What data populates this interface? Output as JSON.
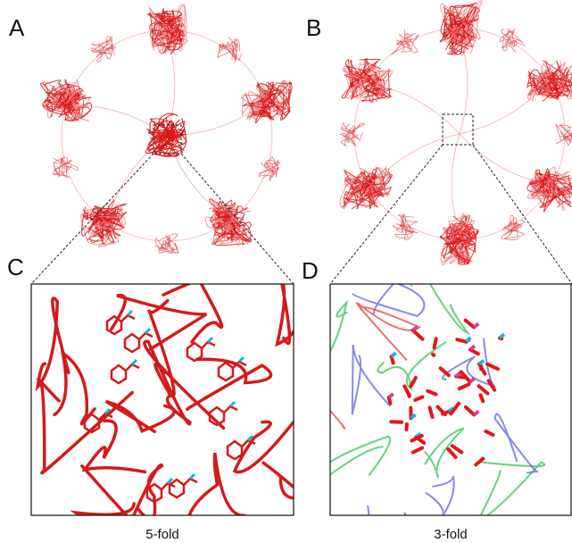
{
  "panels": [
    {
      "label": "A"
    },
    {
      "label": "B"
    },
    {
      "label": "C",
      "caption": "5-fold"
    },
    {
      "label": "D",
      "caption": "3-fold"
    }
  ]
}
